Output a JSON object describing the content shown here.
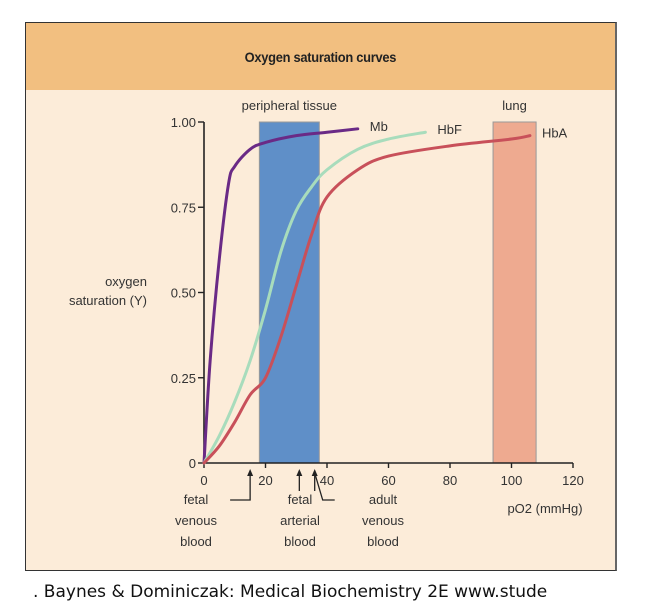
{
  "chart_data": {
    "type": "line",
    "title": "Oxygen saturation curves",
    "xlabel": "pO2 (mmHg)",
    "ylabel": [
      "oxygen",
      "saturation (Y)"
    ],
    "xlim": [
      0,
      120
    ],
    "ylim": [
      0,
      1
    ],
    "xticks": [
      "0",
      "20",
      "40",
      "60",
      "80",
      "100",
      "120"
    ],
    "yticks": [
      "0",
      "0.25",
      "0.50",
      "0.75",
      "1.00"
    ],
    "grid": false,
    "regions": [
      {
        "label": "peripheral tissue",
        "x": [
          18,
          37.5
        ],
        "color": "#5f8fc8"
      },
      {
        "label": "lung",
        "x": [
          94,
          108
        ],
        "color": "#eeaa90"
      }
    ],
    "series": [
      {
        "name": "Mb",
        "color": "#6a2a86",
        "x": [
          0,
          2,
          5,
          8,
          10,
          15,
          20,
          30,
          40,
          50
        ],
        "y": [
          0,
          0.3,
          0.6,
          0.82,
          0.87,
          0.92,
          0.94,
          0.96,
          0.97,
          0.98
        ]
      },
      {
        "name": "HbF",
        "color": "#a8dcbc",
        "x": [
          0,
          5,
          10,
          15,
          20,
          25,
          30,
          35,
          40,
          50,
          60,
          72
        ],
        "y": [
          0,
          0.08,
          0.18,
          0.3,
          0.45,
          0.62,
          0.74,
          0.81,
          0.86,
          0.92,
          0.95,
          0.97
        ]
      },
      {
        "name": "HbA",
        "color": "#c8505a",
        "x": [
          0,
          5,
          10,
          15,
          20,
          25,
          30,
          35,
          40,
          50,
          60,
          80,
          100,
          106
        ],
        "y": [
          0,
          0.05,
          0.12,
          0.2,
          0.25,
          0.37,
          0.52,
          0.67,
          0.78,
          0.86,
          0.9,
          0.93,
          0.95,
          0.96
        ]
      }
    ],
    "annotations": [
      {
        "x": 15,
        "lines": [
          "fetal",
          "venous",
          "blood"
        ]
      },
      {
        "x": 31,
        "lines": [
          "fetal",
          "arterial",
          "blood"
        ]
      },
      {
        "x": 36,
        "lines": [
          "adult",
          "venous",
          "blood"
        ]
      }
    ]
  },
  "caption": ". Baynes & Dominiczak: Medical Biochemistry 2E www.stude"
}
